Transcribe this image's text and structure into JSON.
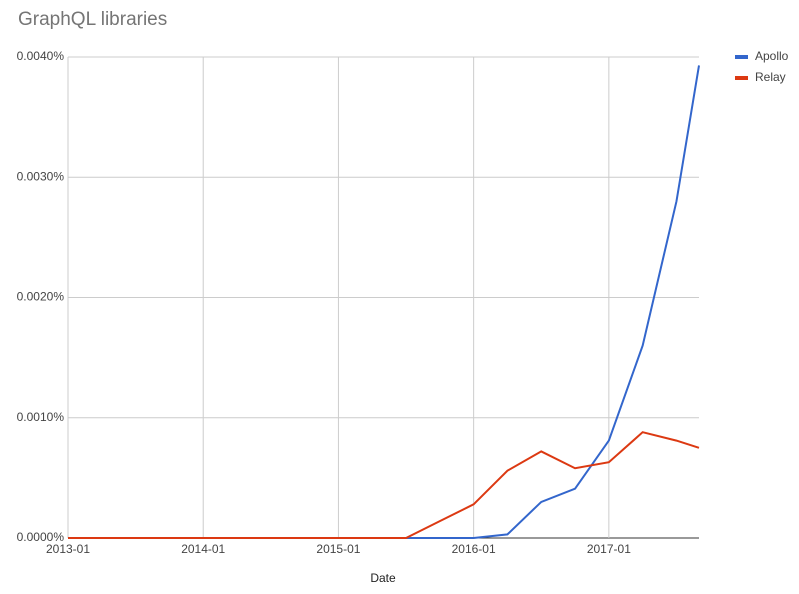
{
  "chart_data": {
    "type": "line",
    "title": "GraphQL libraries",
    "x_label": "Date",
    "x": [
      "2013-01",
      "2013-04",
      "2013-07",
      "2013-10",
      "2014-01",
      "2014-04",
      "2014-07",
      "2014-10",
      "2015-01",
      "2015-04",
      "2015-07",
      "2015-10",
      "2016-01",
      "2016-04",
      "2016-07",
      "2016-10",
      "2017-01",
      "2017-04",
      "2017-07",
      "2017-09"
    ],
    "series": [
      {
        "name": "Apollo",
        "color": "#3366cc",
        "values": [
          0,
          0,
          0,
          0,
          0,
          0,
          0,
          0,
          0,
          0,
          0,
          0,
          0,
          3e-05,
          0.0003,
          0.00041,
          0.00081,
          0.0016,
          0.0028,
          0.00393
        ]
      },
      {
        "name": "Relay",
        "color": "#dc3912",
        "values": [
          0,
          0,
          0,
          0,
          0,
          0,
          0,
          0,
          0,
          0,
          0,
          0.00014,
          0.00028,
          0.00056,
          0.00072,
          0.00058,
          0.00063,
          0.00088,
          0.00081,
          0.00075
        ]
      }
    ],
    "xlim": [
      "2013-01",
      "2017-09"
    ],
    "xticks": [
      "2013-01",
      "2014-01",
      "2015-01",
      "2016-01",
      "2017-01"
    ],
    "ylim": [
      0,
      0.004
    ],
    "yticks": [
      {
        "value": 0,
        "label": "0.0000%"
      },
      {
        "value": 0.001,
        "label": "0.0010%"
      },
      {
        "value": 0.002,
        "label": "0.0020%"
      },
      {
        "value": 0.003,
        "label": "0.0030%"
      },
      {
        "value": 0.004,
        "label": "0.0040%"
      }
    ],
    "grid": true,
    "legend": "right"
  }
}
